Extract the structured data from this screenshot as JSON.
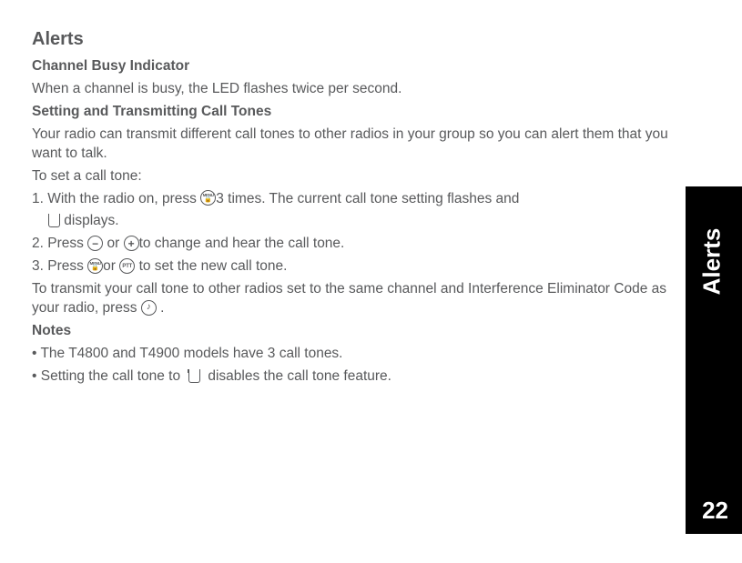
{
  "title": "Alerts",
  "sections": {
    "s1_heading": "Channel Busy Indicator",
    "s1_body": "When a channel is busy, the LED flashes twice per second.",
    "s2_heading": "Setting and Transmitting Call Tones",
    "s2_body": "Your radio can transmit different call tones to other radios in your group so you can alert them that you want to talk.",
    "s2_intro": "To set a call tone:",
    "step1_a": "1. With the radio on, press ",
    "step1_b": "3 times. The current call tone setting flashes and",
    "step1_c": " displays.",
    "step2_a": "2. Press ",
    "step2_b": " or ",
    "step2_c": "to change and hear the call tone.",
    "step3_a": "3. Press ",
    "step3_b": "or ",
    "step3_c": " to set the new call tone.",
    "transmit_a": "To transmit your call tone to other radios set to the same channel and Interference Eliminator Code as your radio, press ",
    "transmit_b": ".",
    "notes_heading": "Notes",
    "note1": "• The T4800 and T4900 models have 3 call tones.",
    "note2_a": "• Setting the call tone to  ",
    "note2_b": "  disables the call tone feature."
  },
  "side": {
    "label": "Alerts",
    "page": "22"
  },
  "icons": {
    "menu_top": "MENU",
    "ptt": "PTT",
    "tone": "♪",
    "minus": "−",
    "plus": "+",
    "lock": "🔒"
  }
}
